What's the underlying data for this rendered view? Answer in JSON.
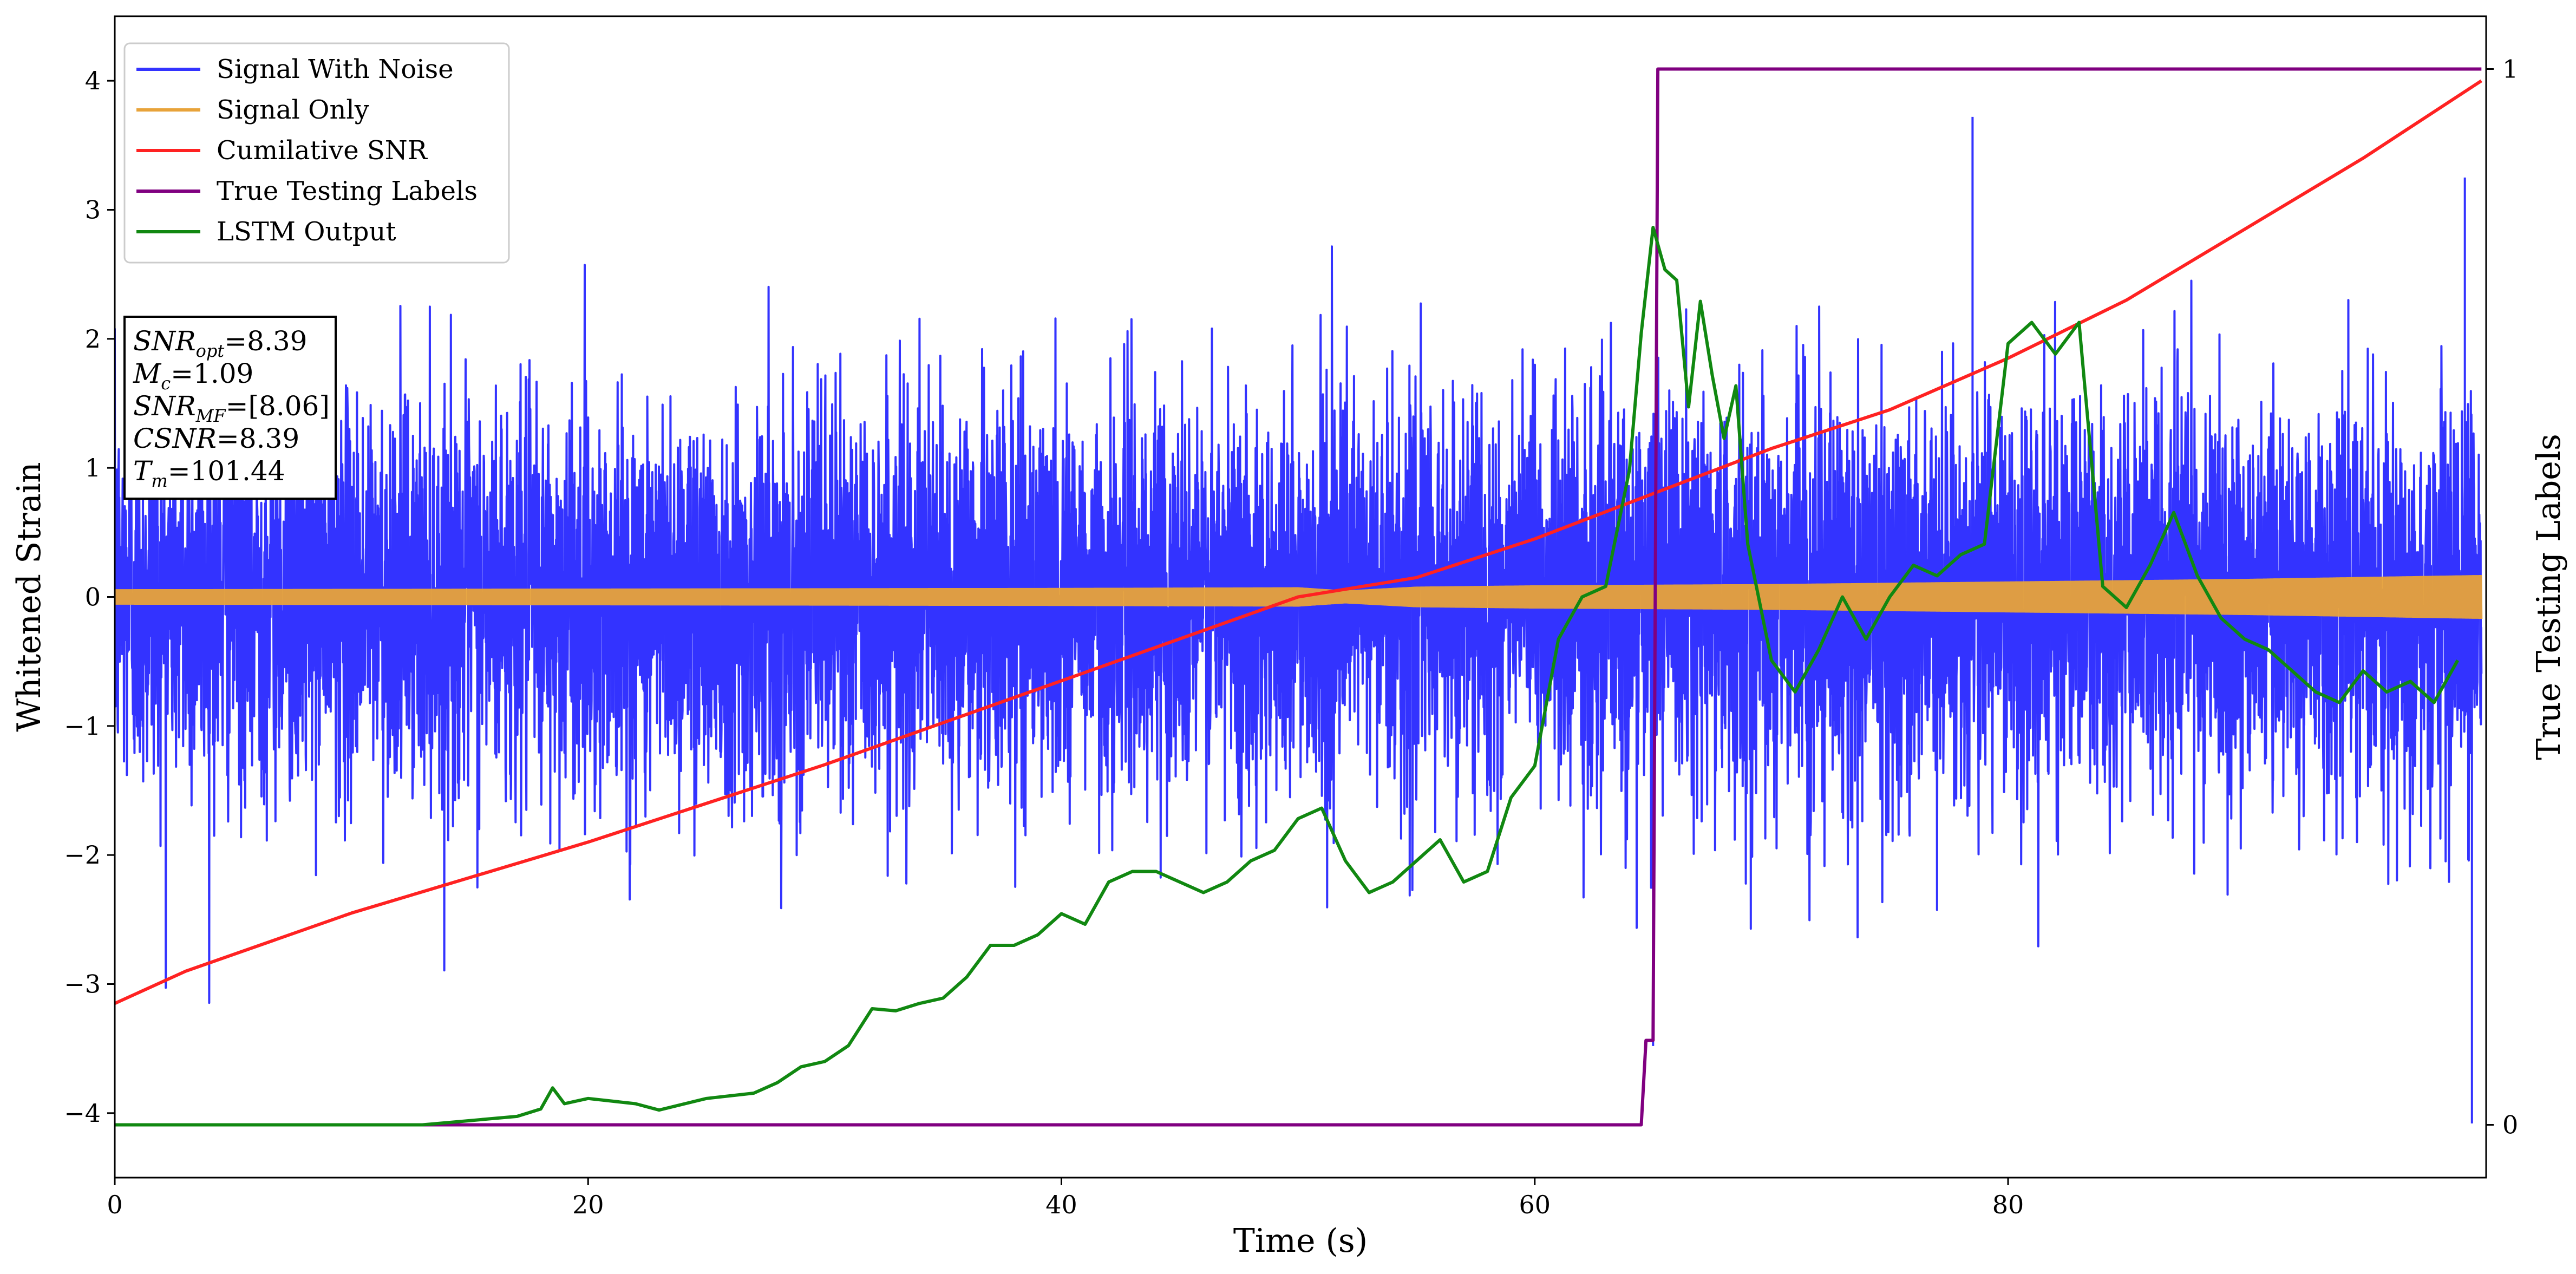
{
  "chart_data": {
    "type": "line",
    "xlabel": "Time (s)",
    "ylabel": "Whitened Strain",
    "ylabel_right": "True Testing Labels",
    "xlim": [
      0,
      100.2
    ],
    "ylim": [
      -4.5,
      4.5
    ],
    "ylim_right": [
      -0.05,
      1.05
    ],
    "x_ticks": [
      0,
      20,
      40,
      60,
      80
    ],
    "y_ticks": [
      -4,
      -3,
      -2,
      -1,
      0,
      1,
      2,
      3,
      4
    ],
    "y_ticks_right": [
      0,
      1
    ],
    "legend_position": "upper-left",
    "grid": false,
    "series": [
      {
        "name": "Signal With Noise",
        "color": "#3333ff",
        "axis": "left",
        "style": "dense-noise",
        "approx_std": 0.75,
        "range": [
          -4.08,
          3.72
        ],
        "notable_extremes": [
          {
            "x": 65.0,
            "y": -3.48
          },
          {
            "x": 78.5,
            "y": 3.72
          },
          {
            "x": 99.6,
            "y": -4.08
          },
          {
            "x": 99.3,
            "y": 3.25
          }
        ]
      },
      {
        "name": "Signal Only",
        "color": "#e8a33a",
        "axis": "left",
        "style": "chirp-envelope",
        "envelope": {
          "x": [
            0,
            20,
            40,
            50,
            52,
            55,
            60,
            70,
            80,
            90,
            100
          ],
          "amp": [
            0.06,
            0.065,
            0.07,
            0.075,
            0.05,
            0.08,
            0.09,
            0.1,
            0.12,
            0.14,
            0.17
          ]
        }
      },
      {
        "name": "Cumilative SNR",
        "color": "#ff2222",
        "axis": "left",
        "x": [
          0,
          3,
          10,
          20,
          30,
          40,
          50,
          55,
          60,
          65,
          70,
          75,
          80,
          85,
          90,
          95,
          100
        ],
        "y": [
          -3.15,
          -2.9,
          -2.45,
          -1.9,
          -1.3,
          -0.65,
          0.0,
          0.15,
          0.45,
          0.8,
          1.15,
          1.45,
          1.85,
          2.3,
          2.85,
          3.4,
          4.0
        ]
      },
      {
        "name": "True Testing Labels",
        "color": "#800080",
        "axis": "right",
        "x": [
          0,
          64.5,
          64.7,
          65.0,
          65.2,
          100
        ],
        "y": [
          0,
          0,
          0.08,
          0.08,
          1,
          1
        ]
      },
      {
        "name": "LSTM Output",
        "color": "#118811",
        "axis": "right",
        "x": [
          0,
          13,
          15,
          17,
          18,
          18.5,
          19,
          20,
          22,
          23,
          25,
          27,
          28,
          29,
          30,
          31,
          32,
          33,
          34,
          35,
          36,
          37,
          38,
          39,
          40,
          41,
          42,
          43,
          44,
          45,
          46,
          47,
          48,
          49,
          50,
          51,
          52,
          53,
          54,
          55,
          56,
          57,
          58,
          59,
          60,
          61,
          62,
          63,
          64,
          64.5,
          65,
          65.5,
          66,
          66.5,
          67,
          67.5,
          68,
          68.5,
          69,
          70,
          71,
          72,
          73,
          74,
          75,
          76,
          77,
          78,
          79,
          80,
          81,
          82,
          83,
          84,
          85,
          86,
          87,
          88,
          89,
          90,
          91,
          92,
          93,
          94,
          95,
          96,
          97,
          98,
          99
        ],
        "y": [
          0,
          0,
          0.004,
          0.008,
          0.015,
          0.035,
          0.02,
          0.025,
          0.02,
          0.014,
          0.025,
          0.03,
          0.04,
          0.055,
          0.06,
          0.075,
          0.11,
          0.108,
          0.115,
          0.12,
          0.14,
          0.17,
          0.17,
          0.18,
          0.2,
          0.19,
          0.23,
          0.24,
          0.24,
          0.23,
          0.22,
          0.23,
          0.25,
          0.26,
          0.29,
          0.3,
          0.25,
          0.22,
          0.23,
          0.25,
          0.27,
          0.23,
          0.24,
          0.31,
          0.34,
          0.46,
          0.5,
          0.51,
          0.62,
          0.75,
          0.85,
          0.81,
          0.8,
          0.68,
          0.78,
          0.71,
          0.65,
          0.7,
          0.55,
          0.44,
          0.41,
          0.45,
          0.5,
          0.46,
          0.5,
          0.53,
          0.52,
          0.54,
          0.55,
          0.74,
          0.76,
          0.73,
          0.76,
          0.51,
          0.49,
          0.53,
          0.58,
          0.52,
          0.48,
          0.46,
          0.45,
          0.43,
          0.41,
          0.4,
          0.43,
          0.41,
          0.42,
          0.4,
          0.44
        ]
      }
    ],
    "annotation": {
      "lines": [
        {
          "main": "SNR",
          "sub": "opt",
          "value": "=8.39",
          "italic": true
        },
        {
          "main": "M",
          "sub": "c",
          "value": "=1.09",
          "italic": true
        },
        {
          "main": "SNR",
          "sub": "MF",
          "value": "=[8.06]",
          "italic": true
        },
        {
          "main": "CSNR",
          "sub": "",
          "value": "=8.39",
          "italic": true
        },
        {
          "main": "T",
          "sub": "m",
          "value": "=101.44",
          "italic": true
        }
      ]
    }
  }
}
